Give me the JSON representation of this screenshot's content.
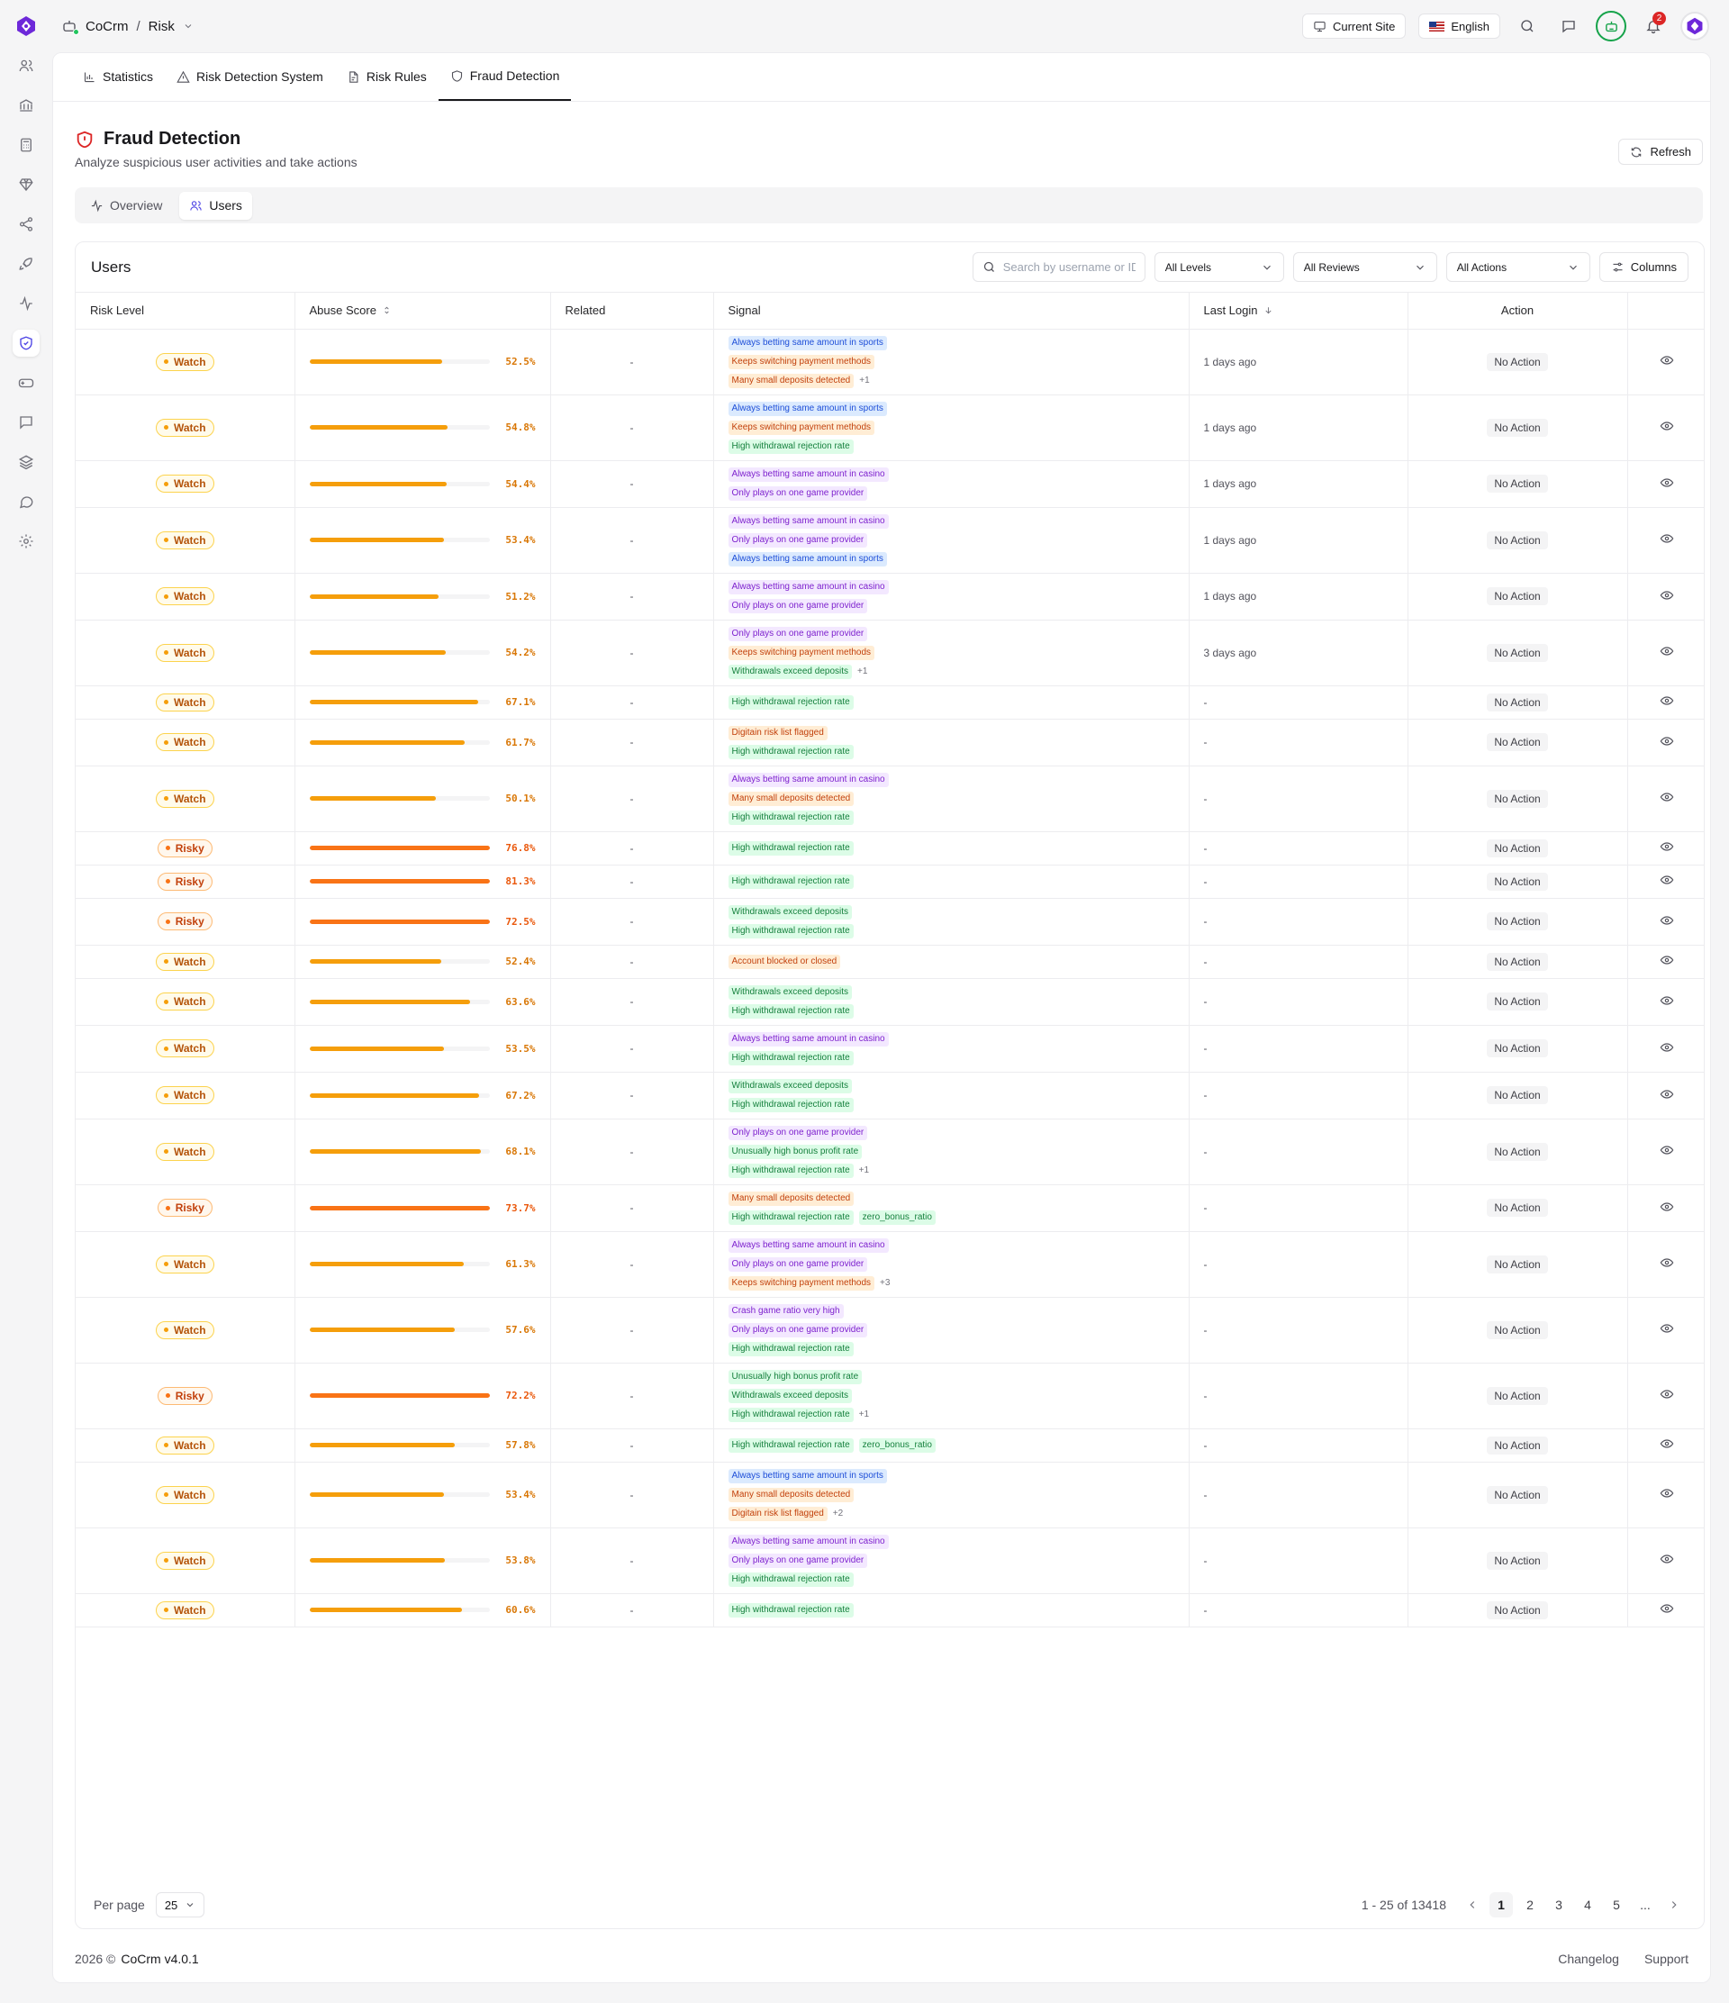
{
  "breadcrumb": {
    "app": "CoCrm",
    "separator": "/",
    "section": "Risk"
  },
  "topbar": {
    "current_site": "Current Site",
    "language": "English",
    "notifications_count": "2"
  },
  "tabs": [
    {
      "label": "Statistics",
      "icon": "bar-chart-icon"
    },
    {
      "label": "Risk Detection System",
      "icon": "alert-triangle-icon"
    },
    {
      "label": "Risk Rules",
      "icon": "file-icon"
    },
    {
      "label": "Fraud Detection",
      "icon": "shield-icon",
      "active": true
    }
  ],
  "page": {
    "title": "Fraud Detection",
    "subtitle": "Analyze suspicious user activities and take actions",
    "refresh": "Refresh"
  },
  "subtabs": [
    {
      "label": "Overview"
    },
    {
      "label": "Users",
      "active": true
    }
  ],
  "users": {
    "title": "Users",
    "search_placeholder": "Search by username or ID",
    "filters": {
      "levels": "All Levels",
      "reviews": "All Reviews",
      "actions": "All Actions"
    },
    "columns_button": "Columns",
    "headers": {
      "risk_level": "Risk Level",
      "abuse_score": "Abuse Score",
      "related": "Related",
      "signal": "Signal",
      "last_login": "Last Login",
      "action": "Action"
    },
    "rows": [
      {
        "level": "Watch",
        "score": 52.5,
        "score_label": "52.5%",
        "related": "-",
        "signals": [
          [
            "Always betting same amount in sports",
            "blue"
          ],
          [
            "Keeps switching payment methods",
            "orange"
          ],
          [
            "Many small deposits detected",
            "orange"
          ]
        ],
        "more": "+1",
        "login": "1 days ago",
        "action": "No Action"
      },
      {
        "level": "Watch",
        "score": 54.8,
        "score_label": "54.8%",
        "related": "-",
        "signals": [
          [
            "Always betting same amount in sports",
            "blue"
          ],
          [
            "Keeps switching payment methods",
            "orange"
          ],
          [
            "High withdrawal rejection rate",
            "green"
          ]
        ],
        "more": "",
        "login": "1 days ago",
        "action": "No Action"
      },
      {
        "level": "Watch",
        "score": 54.4,
        "score_label": "54.4%",
        "related": "-",
        "signals": [
          [
            "Always betting same amount in casino",
            "purple"
          ],
          [
            "Only plays on one game provider",
            "purple"
          ]
        ],
        "more": "",
        "login": "1 days ago",
        "action": "No Action"
      },
      {
        "level": "Watch",
        "score": 53.4,
        "score_label": "53.4%",
        "related": "-",
        "signals": [
          [
            "Always betting same amount in casino",
            "purple"
          ],
          [
            "Only plays on one game provider",
            "purple"
          ],
          [
            "Always betting same amount in sports",
            "blue"
          ]
        ],
        "more": "",
        "login": "1 days ago",
        "action": "No Action"
      },
      {
        "level": "Watch",
        "score": 51.2,
        "score_label": "51.2%",
        "related": "-",
        "signals": [
          [
            "Always betting same amount in casino",
            "purple"
          ],
          [
            "Only plays on one game provider",
            "purple"
          ]
        ],
        "more": "",
        "login": "1 days ago",
        "action": "No Action"
      },
      {
        "level": "Watch",
        "score": 54.2,
        "score_label": "54.2%",
        "related": "-",
        "signals": [
          [
            "Only plays on one game provider",
            "purple"
          ],
          [
            "Keeps switching payment methods",
            "orange"
          ],
          [
            "Withdrawals exceed deposits",
            "green"
          ]
        ],
        "more": "+1",
        "login": "3 days ago",
        "action": "No Action"
      },
      {
        "level": "Watch",
        "score": 67.1,
        "score_label": "67.1%",
        "related": "-",
        "signals": [
          [
            "High withdrawal rejection rate",
            "green"
          ]
        ],
        "more": "",
        "login": "-",
        "action": "No Action"
      },
      {
        "level": "Watch",
        "score": 61.7,
        "score_label": "61.7%",
        "related": "-",
        "signals": [
          [
            "Digitain risk list flagged",
            "orange"
          ],
          [
            "High withdrawal rejection rate",
            "green"
          ]
        ],
        "more": "",
        "login": "-",
        "action": "No Action"
      },
      {
        "level": "Watch",
        "score": 50.1,
        "score_label": "50.1%",
        "related": "-",
        "signals": [
          [
            "Always betting same amount in casino",
            "purple"
          ],
          [
            "Many small deposits detected",
            "orange"
          ],
          [
            "High withdrawal rejection rate",
            "green"
          ]
        ],
        "more": "",
        "login": "-",
        "action": "No Action"
      },
      {
        "level": "Risky",
        "score": 76.8,
        "score_label": "76.8%",
        "related": "-",
        "signals": [
          [
            "High withdrawal rejection rate",
            "green"
          ]
        ],
        "more": "",
        "login": "-",
        "action": "No Action"
      },
      {
        "level": "Risky",
        "score": 81.3,
        "score_label": "81.3%",
        "related": "-",
        "signals": [
          [
            "High withdrawal rejection rate",
            "green"
          ]
        ],
        "more": "",
        "login": "-",
        "action": "No Action"
      },
      {
        "level": "Risky",
        "score": 72.5,
        "score_label": "72.5%",
        "related": "-",
        "signals": [
          [
            "Withdrawals exceed deposits",
            "green"
          ],
          [
            "High withdrawal rejection rate",
            "green"
          ]
        ],
        "more": "",
        "login": "-",
        "action": "No Action"
      },
      {
        "level": "Watch",
        "score": 52.4,
        "score_label": "52.4%",
        "related": "-",
        "signals": [
          [
            "Account blocked or closed",
            "orange"
          ]
        ],
        "more": "",
        "login": "-",
        "action": "No Action"
      },
      {
        "level": "Watch",
        "score": 63.6,
        "score_label": "63.6%",
        "related": "-",
        "signals": [
          [
            "Withdrawals exceed deposits",
            "green"
          ],
          [
            "High withdrawal rejection rate",
            "green"
          ]
        ],
        "more": "",
        "login": "-",
        "action": "No Action"
      },
      {
        "level": "Watch",
        "score": 53.5,
        "score_label": "53.5%",
        "related": "-",
        "signals": [
          [
            "Always betting same amount in casino",
            "purple"
          ],
          [
            "High withdrawal rejection rate",
            "green"
          ]
        ],
        "more": "",
        "login": "-",
        "action": "No Action"
      },
      {
        "level": "Watch",
        "score": 67.2,
        "score_label": "67.2%",
        "related": "-",
        "signals": [
          [
            "Withdrawals exceed deposits",
            "green"
          ],
          [
            "High withdrawal rejection rate",
            "green"
          ]
        ],
        "more": "",
        "login": "-",
        "action": "No Action"
      },
      {
        "level": "Watch",
        "score": 68.1,
        "score_label": "68.1%",
        "related": "-",
        "signals": [
          [
            "Only plays on one game provider",
            "purple"
          ],
          [
            "Unusually high bonus profit rate",
            "green"
          ],
          [
            "High withdrawal rejection rate",
            "green"
          ]
        ],
        "more": "+1",
        "login": "-",
        "action": "No Action"
      },
      {
        "level": "Risky",
        "score": 73.7,
        "score_label": "73.7%",
        "related": "-",
        "signals": [
          [
            "Many small deposits detected",
            "orange"
          ],
          [
            "High withdrawal rejection rate",
            "green",
            "zero_bonus_ratio"
          ]
        ],
        "more": "",
        "login": "-",
        "action": "No Action"
      },
      {
        "level": "Watch",
        "score": 61.3,
        "score_label": "61.3%",
        "related": "-",
        "signals": [
          [
            "Always betting same amount in casino",
            "purple"
          ],
          [
            "Only plays on one game provider",
            "purple"
          ],
          [
            "Keeps switching payment methods",
            "orange"
          ]
        ],
        "more": "+3",
        "login": "-",
        "action": "No Action"
      },
      {
        "level": "Watch",
        "score": 57.6,
        "score_label": "57.6%",
        "related": "-",
        "signals": [
          [
            "Crash game ratio very high",
            "purple"
          ],
          [
            "Only plays on one game provider",
            "purple"
          ],
          [
            "High withdrawal rejection rate",
            "green"
          ]
        ],
        "more": "",
        "login": "-",
        "action": "No Action"
      },
      {
        "level": "Risky",
        "score": 72.2,
        "score_label": "72.2%",
        "related": "-",
        "signals": [
          [
            "Unusually high bonus profit rate",
            "green"
          ],
          [
            "Withdrawals exceed deposits",
            "green"
          ],
          [
            "High withdrawal rejection rate",
            "green"
          ]
        ],
        "more": "+1",
        "login": "-",
        "action": "No Action"
      },
      {
        "level": "Watch",
        "score": 57.8,
        "score_label": "57.8%",
        "related": "-",
        "signals": [
          [
            "High withdrawal rejection rate",
            "green",
            "zero_bonus_ratio"
          ]
        ],
        "more": "",
        "login": "-",
        "action": "No Action"
      },
      {
        "level": "Watch",
        "score": 53.4,
        "score_label": "53.4%",
        "related": "-",
        "signals": [
          [
            "Always betting same amount in sports",
            "blue"
          ],
          [
            "Many small deposits detected",
            "orange"
          ],
          [
            "Digitain risk list flagged",
            "orange"
          ]
        ],
        "more": "+2",
        "login": "-",
        "action": "No Action"
      },
      {
        "level": "Watch",
        "score": 53.8,
        "score_label": "53.8%",
        "related": "-",
        "signals": [
          [
            "Always betting same amount in casino",
            "purple"
          ],
          [
            "Only plays on one game provider",
            "purple"
          ],
          [
            "High withdrawal rejection rate",
            "green"
          ]
        ],
        "more": "",
        "login": "-",
        "action": "No Action"
      },
      {
        "level": "Watch",
        "score": 60.6,
        "score_label": "60.6%",
        "related": "-",
        "signals": [
          [
            "High withdrawal rejection rate",
            "green"
          ]
        ],
        "more": "",
        "login": "-",
        "action": "No Action"
      }
    ]
  },
  "pagination": {
    "per_page_label": "Per page",
    "per_page": "25",
    "range": "1 - 25 of 13418",
    "pages": [
      "1",
      "2",
      "3",
      "4",
      "5",
      "..."
    ],
    "current": "1"
  },
  "footer": {
    "year": "2026 ©",
    "version": "CoCrm v4.0.1",
    "links": [
      "Changelog",
      "Support"
    ]
  },
  "colors": {
    "watch_bar": "#f59e0b",
    "risky_bar": "#f97316",
    "watch_text": "#d97706",
    "risky_text": "#ea580c",
    "accent": "#4f46e5"
  }
}
